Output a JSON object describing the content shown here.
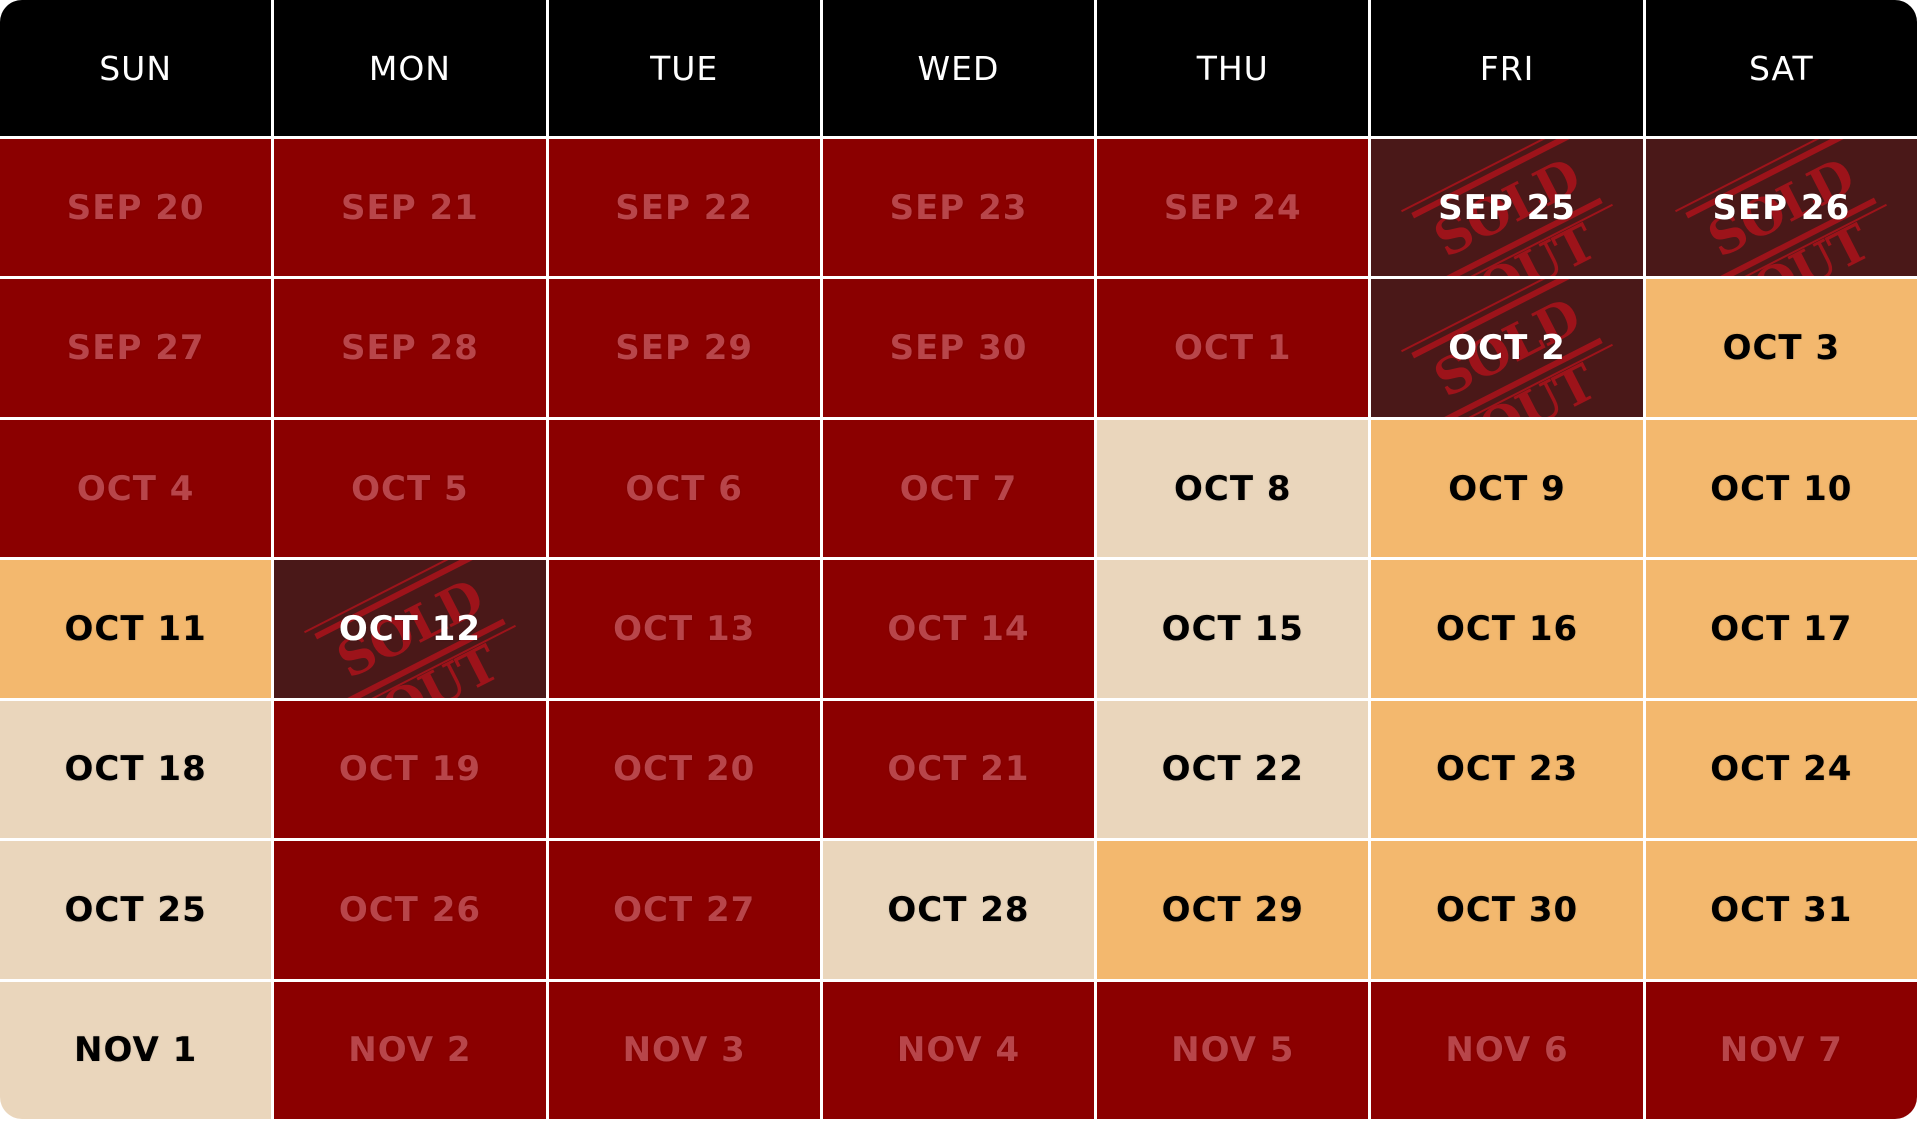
{
  "weekdays": [
    "SUN",
    "MON",
    "TUE",
    "WED",
    "THU",
    "FRI",
    "SAT"
  ],
  "stamp_text": "SOLD OUT",
  "status_colors": {
    "past": "#8b0000",
    "soldout": "#4a1818",
    "peak": "#f3b86e",
    "regular": "#ead6bc",
    "header": "#000000"
  },
  "weeks": [
    [
      {
        "label": "SEP 20",
        "status": "past"
      },
      {
        "label": "SEP 21",
        "status": "past"
      },
      {
        "label": "SEP 22",
        "status": "past"
      },
      {
        "label": "SEP 23",
        "status": "past"
      },
      {
        "label": "SEP 24",
        "status": "past"
      },
      {
        "label": "SEP 25",
        "status": "soldout"
      },
      {
        "label": "SEP 26",
        "status": "soldout"
      }
    ],
    [
      {
        "label": "SEP 27",
        "status": "past"
      },
      {
        "label": "SEP 28",
        "status": "past"
      },
      {
        "label": "SEP 29",
        "status": "past"
      },
      {
        "label": "SEP 30",
        "status": "past"
      },
      {
        "label": "OCT 1",
        "status": "past"
      },
      {
        "label": "OCT 2",
        "status": "soldout"
      },
      {
        "label": "OCT 3",
        "status": "peak"
      }
    ],
    [
      {
        "label": "OCT 4",
        "status": "past"
      },
      {
        "label": "OCT 5",
        "status": "past"
      },
      {
        "label": "OCT 6",
        "status": "past"
      },
      {
        "label": "OCT 7",
        "status": "past"
      },
      {
        "label": "OCT 8",
        "status": "regular"
      },
      {
        "label": "OCT 9",
        "status": "peak"
      },
      {
        "label": "OCT 10",
        "status": "peak"
      }
    ],
    [
      {
        "label": "OCT 11",
        "status": "peak"
      },
      {
        "label": "OCT 12",
        "status": "soldout"
      },
      {
        "label": "OCT 13",
        "status": "past"
      },
      {
        "label": "OCT 14",
        "status": "past"
      },
      {
        "label": "OCT 15",
        "status": "regular"
      },
      {
        "label": "OCT 16",
        "status": "peak"
      },
      {
        "label": "OCT 17",
        "status": "peak"
      }
    ],
    [
      {
        "label": "OCT 18",
        "status": "regular"
      },
      {
        "label": "OCT 19",
        "status": "past"
      },
      {
        "label": "OCT 20",
        "status": "past"
      },
      {
        "label": "OCT 21",
        "status": "past"
      },
      {
        "label": "OCT 22",
        "status": "regular"
      },
      {
        "label": "OCT 23",
        "status": "peak"
      },
      {
        "label": "OCT 24",
        "status": "peak"
      }
    ],
    [
      {
        "label": "OCT 25",
        "status": "regular"
      },
      {
        "label": "OCT 26",
        "status": "past"
      },
      {
        "label": "OCT 27",
        "status": "past"
      },
      {
        "label": "OCT 28",
        "status": "regular"
      },
      {
        "label": "OCT 29",
        "status": "peak"
      },
      {
        "label": "OCT 30",
        "status": "peak"
      },
      {
        "label": "OCT 31",
        "status": "peak"
      }
    ],
    [
      {
        "label": "NOV 1",
        "status": "regular"
      },
      {
        "label": "NOV 2",
        "status": "past"
      },
      {
        "label": "NOV 3",
        "status": "past"
      },
      {
        "label": "NOV 4",
        "status": "past"
      },
      {
        "label": "NOV 5",
        "status": "past"
      },
      {
        "label": "NOV 6",
        "status": "past"
      },
      {
        "label": "NOV 7",
        "status": "past"
      }
    ]
  ]
}
